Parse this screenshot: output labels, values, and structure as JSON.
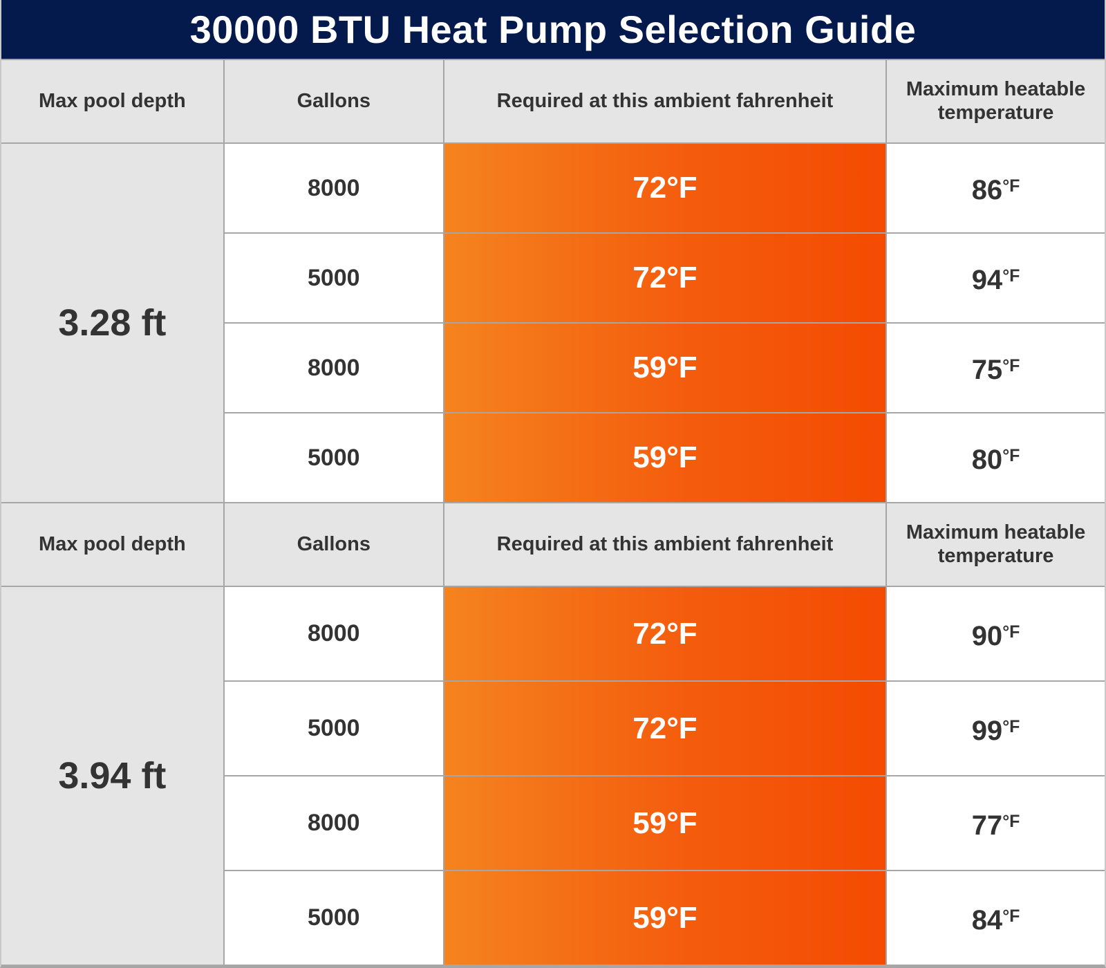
{
  "title": "30000 BTU Heat Pump Selection Guide",
  "columns": [
    "Max pool depth",
    "Gallons",
    "Required at this ambient fahrenheit",
    "Maximum heatable temperature"
  ],
  "sections": [
    {
      "depth": "3.28 ft",
      "rows": [
        {
          "gallons": "8000",
          "ambient": "72°F",
          "max_value": "86",
          "max_unit": "°F"
        },
        {
          "gallons": "5000",
          "ambient": "72°F",
          "max_value": "94",
          "max_unit": "°F"
        },
        {
          "gallons": "8000",
          "ambient": "59°F",
          "max_value": "75",
          "max_unit": "°F"
        },
        {
          "gallons": "5000",
          "ambient": "59°F",
          "max_value": "80",
          "max_unit": "°F"
        }
      ]
    },
    {
      "depth": "3.94 ft",
      "rows": [
        {
          "gallons": "8000",
          "ambient": "72°F",
          "max_value": "90",
          "max_unit": "°F"
        },
        {
          "gallons": "5000",
          "ambient": "72°F",
          "max_value": "99",
          "max_unit": "°F"
        },
        {
          "gallons": "8000",
          "ambient": "59°F",
          "max_value": "77",
          "max_unit": "°F"
        },
        {
          "gallons": "5000",
          "ambient": "59°F",
          "max_value": "84",
          "max_unit": "°F"
        }
      ]
    }
  ],
  "colors": {
    "title_bar": "#041a4d",
    "header_bg": "#e5e5e5",
    "text_dark": "#333333",
    "orange_gradient_start": "#f5831f",
    "orange_gradient_end": "#f44b01",
    "grid_line": "#a6a6a6"
  },
  "chart_data": {
    "type": "table",
    "title": "30000 BTU Heat Pump Selection Guide",
    "columns": [
      "Max pool depth",
      "Gallons",
      "Required at this ambient fahrenheit",
      "Maximum heatable temperature"
    ],
    "rows": [
      [
        "3.28 ft",
        8000,
        "72°F",
        "86°F"
      ],
      [
        "3.28 ft",
        5000,
        "72°F",
        "94°F"
      ],
      [
        "3.28 ft",
        8000,
        "59°F",
        "75°F"
      ],
      [
        "3.28 ft",
        5000,
        "59°F",
        "80°F"
      ],
      [
        "3.94 ft",
        8000,
        "72°F",
        "90°F"
      ],
      [
        "3.94 ft",
        5000,
        "72°F",
        "99°F"
      ],
      [
        "3.94 ft",
        8000,
        "59°F",
        "77°F"
      ],
      [
        "3.94 ft",
        5000,
        "59°F",
        "84°F"
      ]
    ],
    "notes": "Header row is repeated before each depth section; ambient column rendered with horizontal orange gradient"
  }
}
